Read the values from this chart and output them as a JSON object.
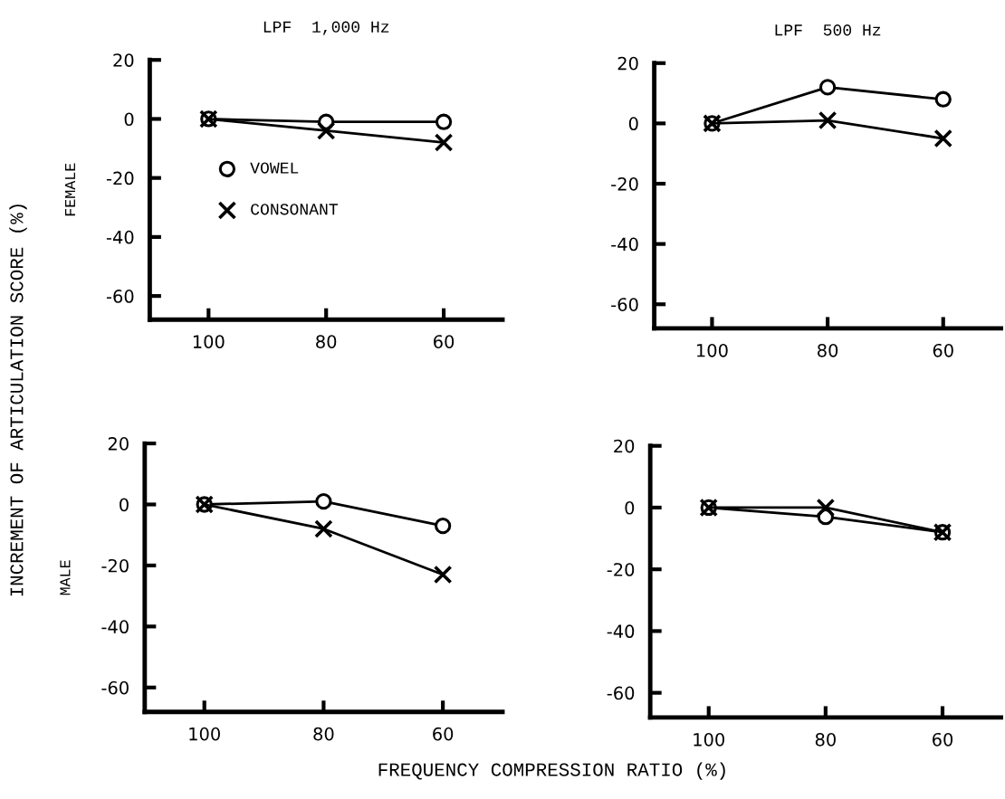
{
  "chart_data": [
    {
      "type": "line",
      "title": "LPF  1,000 Hz",
      "ylabel": "FEMALE",
      "x": [
        100,
        80,
        60
      ],
      "xlim": [
        110,
        50
      ],
      "xticks": [
        100,
        80,
        60
      ],
      "ylim": [
        -68,
        20
      ],
      "yticks": [
        20,
        0,
        -20,
        -40,
        -60
      ],
      "legend": "center left",
      "grid": false,
      "annotations": [
        "INCREMENT OF ARTICULATION SCORE (%)",
        "FREQUENCY COMPRESSION RATIO (%)"
      ],
      "series": [
        {
          "name": "VOWEL",
          "color": "#000000",
          "marker": "circle",
          "values": [
            0,
            -1,
            -1
          ]
        },
        {
          "name": "CONSONANT",
          "color": "#000000",
          "marker": "cross",
          "values": [
            0,
            -4,
            -8
          ]
        }
      ]
    },
    {
      "type": "line",
      "title": "LPF  500 Hz",
      "x": [
        100,
        80,
        60
      ],
      "xlim": [
        110,
        50
      ],
      "xticks": [
        100,
        80,
        60
      ],
      "ylim": [
        -68,
        20
      ],
      "yticks": [
        20,
        0,
        -20,
        -40,
        -60
      ],
      "grid": false,
      "series": [
        {
          "color": "#000000",
          "marker": "circle",
          "values": [
            0,
            12,
            8
          ]
        },
        {
          "color": "#000000",
          "marker": "cross",
          "values": [
            0,
            1,
            -5
          ]
        }
      ]
    },
    {
      "type": "line",
      "ylabel": "MALE",
      "x": [
        100,
        80,
        60
      ],
      "xlim": [
        110,
        50
      ],
      "xticks": [
        100,
        80,
        60
      ],
      "ylim": [
        -68,
        20
      ],
      "yticks": [
        20,
        0,
        -20,
        -40,
        -60
      ],
      "grid": false,
      "series": [
        {
          "color": "#000000",
          "marker": "circle",
          "values": [
            0,
            1,
            -7
          ]
        },
        {
          "color": "#000000",
          "marker": "cross",
          "values": [
            0,
            -8,
            -23
          ]
        }
      ]
    },
    {
      "type": "line",
      "x": [
        100,
        80,
        60
      ],
      "xlim": [
        110,
        50
      ],
      "xticks": [
        100,
        80,
        60
      ],
      "ylim": [
        -68,
        20
      ],
      "yticks": [
        20,
        0,
        -20,
        -40,
        -60
      ],
      "grid": false,
      "series": [
        {
          "color": "#000000",
          "marker": "circle",
          "values": [
            0,
            -3,
            -8
          ]
        },
        {
          "color": "#000000",
          "marker": "cross",
          "values": [
            0,
            0,
            -8
          ]
        }
      ]
    }
  ]
}
